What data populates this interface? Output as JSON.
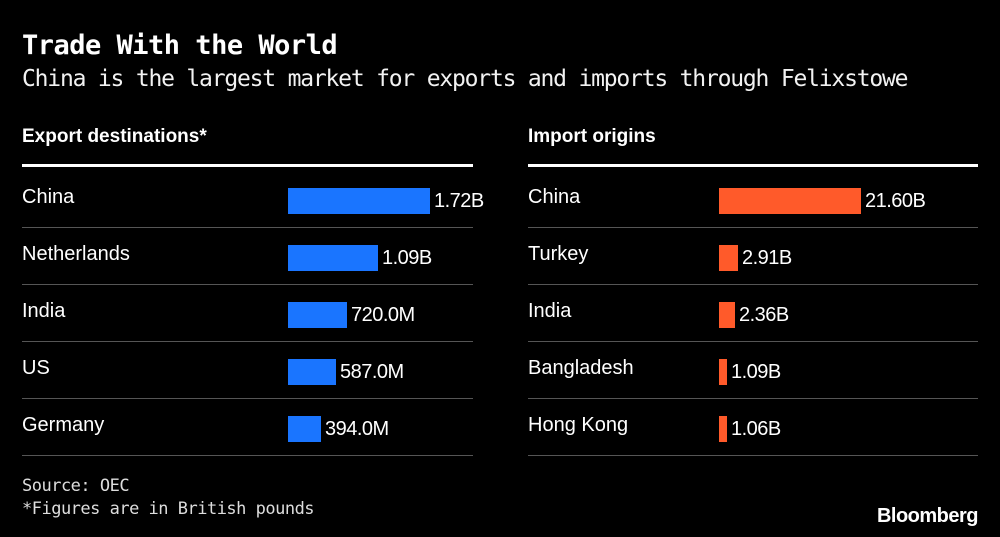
{
  "title": "Trade With the World",
  "subtitle": "China is the largest market for exports and imports through Felixstowe",
  "footer": {
    "source": "Source: OEC",
    "note": "*Figures are in British pounds",
    "brand": "Bloomberg"
  },
  "colors": {
    "background": "#000000",
    "export_bar": "#1a75ff",
    "import_bar": "#ff5a2a",
    "text": "#ffffff"
  },
  "chart_data": [
    {
      "type": "bar",
      "orientation": "horizontal",
      "title": "Export destinations*",
      "categories": [
        "China",
        "Netherlands",
        "India",
        "US",
        "Germany"
      ],
      "values": [
        1720000000,
        1090000000,
        720000000,
        587000000,
        394000000
      ],
      "labels": [
        "1.72B",
        "1.09B",
        "720.0M",
        "587.0M",
        "394.0M"
      ],
      "unit": "GBP"
    },
    {
      "type": "bar",
      "orientation": "horizontal",
      "title": "Import origins",
      "categories": [
        "China",
        "Turkey",
        "India",
        "Bangladesh",
        "Hong Kong"
      ],
      "values": [
        21600000000,
        2910000000,
        2360000000,
        1090000000,
        1060000000
      ],
      "labels": [
        "21.60B",
        "2.91B",
        "2.36B",
        "1.09B",
        "1.06B"
      ],
      "unit": "GBP"
    }
  ]
}
